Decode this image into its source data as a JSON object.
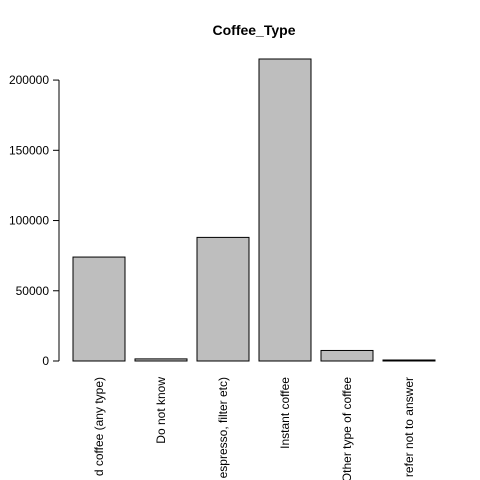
{
  "chart_data": {
    "type": "bar",
    "title": "Coffee_Type",
    "xlabel": "",
    "ylabel": "",
    "categories": [
      "Ground coffee (any type)",
      "Do not know",
      "Espresso, filter etc)",
      "Instant coffee",
      "Other type of coffee",
      "Prefer not to answer"
    ],
    "category_labels_visible": [
      "d coffee (any type)",
      "Do not know",
      "espresso, filter etc)",
      "Instant coffee",
      "Other type of coffee",
      "refer not to answer"
    ],
    "values": [
      74000,
      1500,
      88000,
      215000,
      7500,
      500
    ],
    "ylim": [
      0,
      215000
    ],
    "yticks": [
      0,
      50000,
      100000,
      150000,
      200000
    ],
    "ytick_labels": [
      "0",
      "50000",
      "100000",
      "150000",
      "200000"
    ],
    "bar_color": "#bebebe",
    "edge_color": "#000000",
    "grid": false,
    "legend": "none"
  }
}
